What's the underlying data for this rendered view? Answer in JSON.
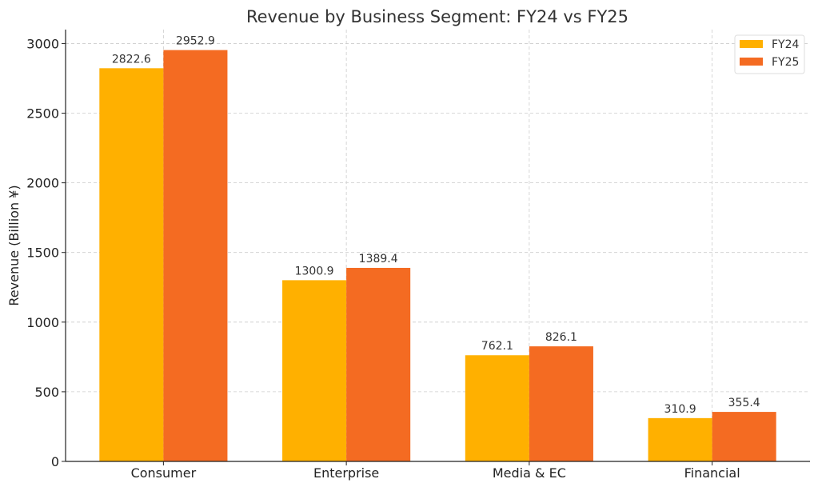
{
  "chart_data": {
    "type": "bar",
    "title": "Revenue by Business Segment: FY24 vs FY25",
    "xlabel": "",
    "ylabel": "Revenue (Billion ¥)",
    "categories": [
      "Consumer",
      "Enterprise",
      "Media & EC",
      "Financial"
    ],
    "series": [
      {
        "name": "FY24",
        "color": "#FFB000",
        "values": [
          2822.6,
          1300.9,
          762.1,
          310.9
        ],
        "labels": [
          "2822.6",
          "1300.9",
          "762.1",
          "310.9"
        ]
      },
      {
        "name": "FY25",
        "color": "#F46B22",
        "values": [
          2952.9,
          1389.4,
          826.1,
          355.4
        ],
        "labels": [
          "2952.9",
          "1389.4",
          "826.1",
          "355.4"
        ]
      }
    ],
    "ylim": [
      0,
      3100
    ],
    "yticks": [
      0,
      500,
      1000,
      1500,
      2000,
      2500,
      3000
    ],
    "grid": true,
    "legend_position": "top-right"
  }
}
